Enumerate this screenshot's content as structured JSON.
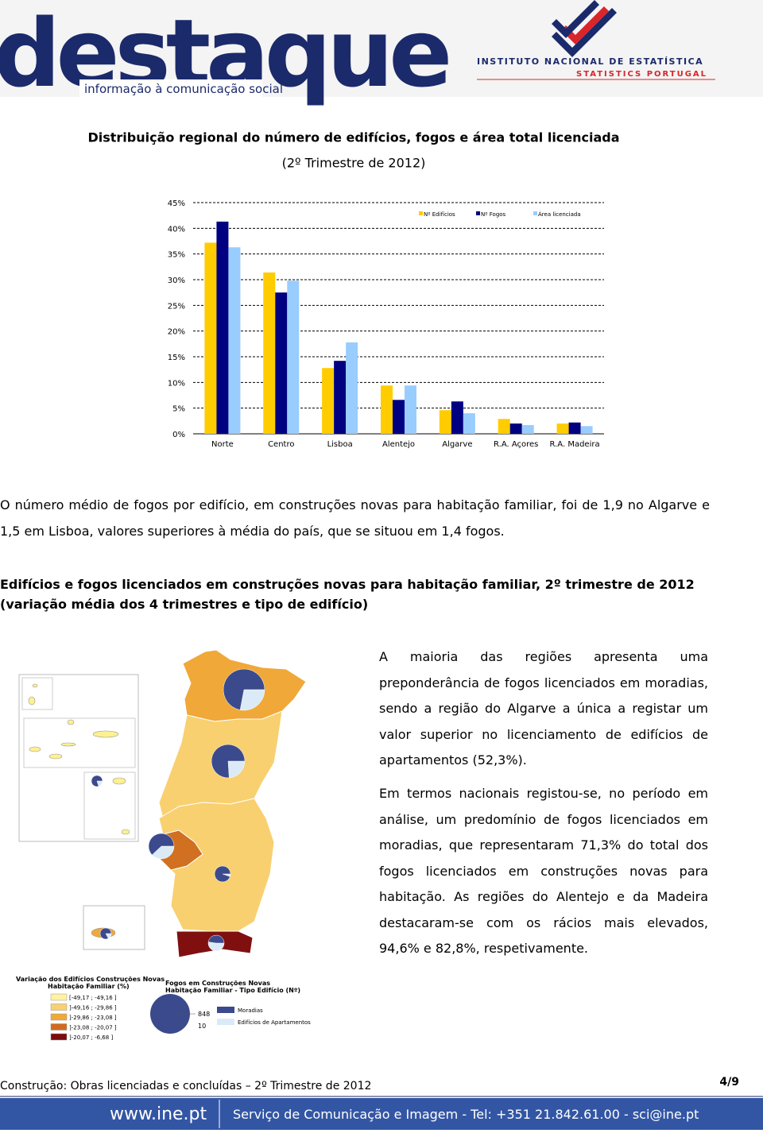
{
  "header": {
    "brand": "destaque",
    "tagline": "informação à comunicação social",
    "institute": "INSTITUTO NACIONAL DE ESTATÍSTICA",
    "institute_en": "STATISTICS PORTUGAL"
  },
  "chart_data": {
    "type": "bar",
    "title": "Distribuição regional do número de edifícios, fogos e área total licenciada",
    "subtitle": "(2º Trimestre de 2012)",
    "categories": [
      "Norte",
      "Centro",
      "Lisboa",
      "Alentejo",
      "Algarve",
      "R.A. Açores",
      "R.A. Madeira"
    ],
    "series": [
      {
        "name": "Nº Edifícios",
        "color": "#ffcc00",
        "values": [
          37.2,
          31.4,
          12.8,
          9.4,
          4.6,
          2.9,
          2.0
        ]
      },
      {
        "name": "Nº Fogos",
        "color": "#000080",
        "values": [
          41.3,
          27.5,
          14.2,
          6.6,
          6.3,
          2.0,
          2.2
        ]
      },
      {
        "name": "Área licenciada",
        "color": "#99ccff",
        "values": [
          36.3,
          29.8,
          17.8,
          9.4,
          4.0,
          1.7,
          1.5
        ]
      }
    ],
    "ylim": [
      0,
      45
    ],
    "yticks": [
      {
        "value": 0,
        "label": "0%"
      },
      {
        "value": 5,
        "label": "5%"
      },
      {
        "value": 10,
        "label": "10%"
      },
      {
        "value": 15,
        "label": "15%"
      },
      {
        "value": 20,
        "label": "20%"
      },
      {
        "value": 25,
        "label": "25%"
      },
      {
        "value": 30,
        "label": "30%"
      },
      {
        "value": 35,
        "label": "35%"
      },
      {
        "value": 40,
        "label": "40%"
      },
      {
        "value": 45,
        "label": "45%"
      }
    ],
    "grid": true,
    "legend": "top"
  },
  "paragraph_1": "O número médio de fogos por edifício, em construções novas para habitação familiar, foi de 1,9 no Algarve e 1,5 em Lisboa, valores superiores à média do país, que se situou em 1,4 fogos.",
  "map_section": {
    "title": "Edifícios e fogos licenciados em construções novas para habitação familiar, 2º trimestre de 2012",
    "subtitle": "(variação média dos 4 trimestres e tipo de edifício)",
    "text_1": "A maioria das regiões apresenta uma preponderância de fogos licenciados em moradias, sendo a região do Algarve a única a registar um valor superior no licenciamento de edifícios de apartamentos (52,3%).",
    "text_2": "Em termos nacionais registou-se, no período em análise, um predomínio de fogos licenciados em moradias, que representaram 71,3% do total dos fogos licenciados em construções novas para habitação. As regiões do Alentejo e da Madeira destacaram-se com os rácios mais elevados, 94,6% e 82,8%, respetivamente.",
    "legend_variation": {
      "title_1": "Variação dos Edifícios Construções Novas",
      "title_2": "Habitação Familiar (%)",
      "classes": [
        "[-49,17 ; -49,16 ]",
        "]-49,16 ; -29,86 ]",
        "]-29,86 ; -23,08 ]",
        "]-23,08 ; -20,07 ]",
        "]-20,07 ; -6,68 ]"
      ]
    },
    "legend_pies": {
      "title_1": "Fogos em Construções Novas",
      "title_2": "Habitação Familiar - Tipo Edifício (Nº)",
      "size_large": 848,
      "size_small": 10,
      "houses": "Moradias",
      "apartments": "Edifícios de Apartamentos"
    },
    "pies": [
      {
        "houses": 72,
        "apartments": 28
      },
      {
        "houses": 76,
        "apartments": 24
      },
      {
        "houses": 62,
        "apartments": 38
      },
      {
        "houses": 94.6,
        "apartments": 5.4
      },
      {
        "houses": 47.7,
        "apartments": 52.3
      },
      {
        "houses": 80,
        "apartments": 20
      },
      {
        "houses": 82.8,
        "apartments": 17.2
      }
    ]
  },
  "footer": {
    "section": "Construção: Obras licenciadas e concluídas – 2º Trimestre de 2012",
    "page": "4/9",
    "site": "www.ine.pt",
    "contact": "Serviço de Comunicação e Imagem - Tel: +351 21.842.61.00 - sci@ine.pt"
  }
}
